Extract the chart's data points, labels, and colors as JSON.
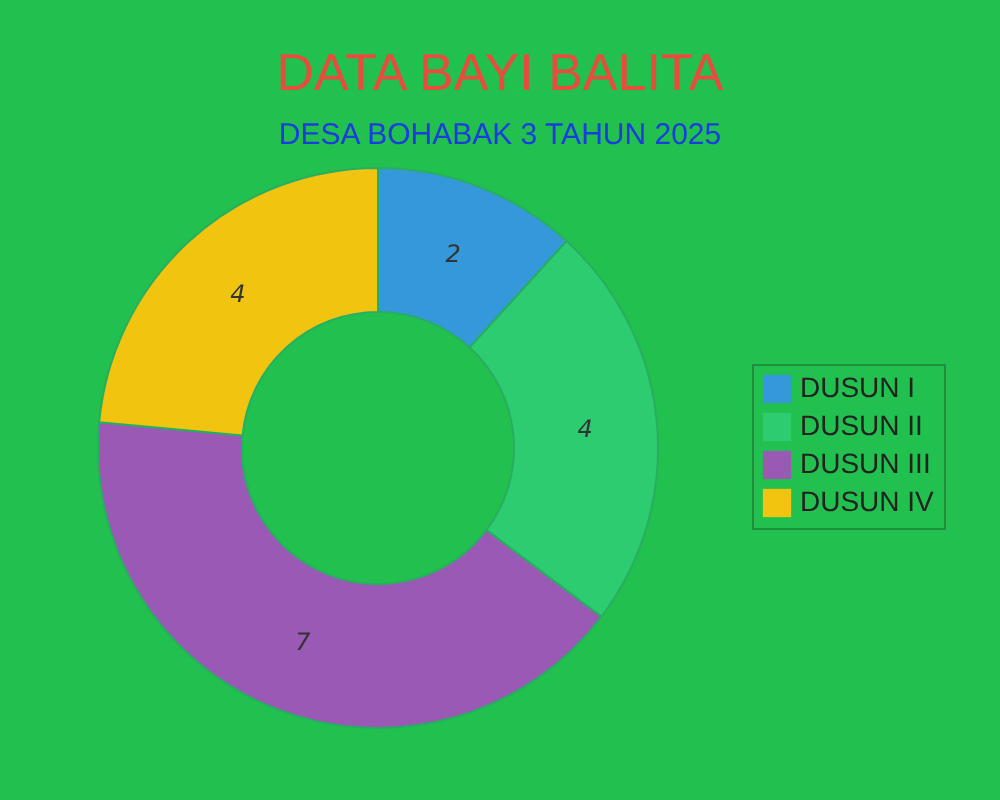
{
  "chart_data": {
    "type": "donut",
    "title": "DATA BAYI BALITA",
    "subtitle": "DESA BOHABAK 3 TAHUN 2025",
    "categories": [
      "DUSUN I",
      "DUSUN II",
      "DUSUN III",
      "DUSUN IV"
    ],
    "values": [
      2,
      4,
      7,
      4
    ],
    "colors": [
      "#3498db",
      "#2ecc71",
      "#9b59b6",
      "#f1c40f"
    ],
    "data_labels": true,
    "legend": "right"
  }
}
